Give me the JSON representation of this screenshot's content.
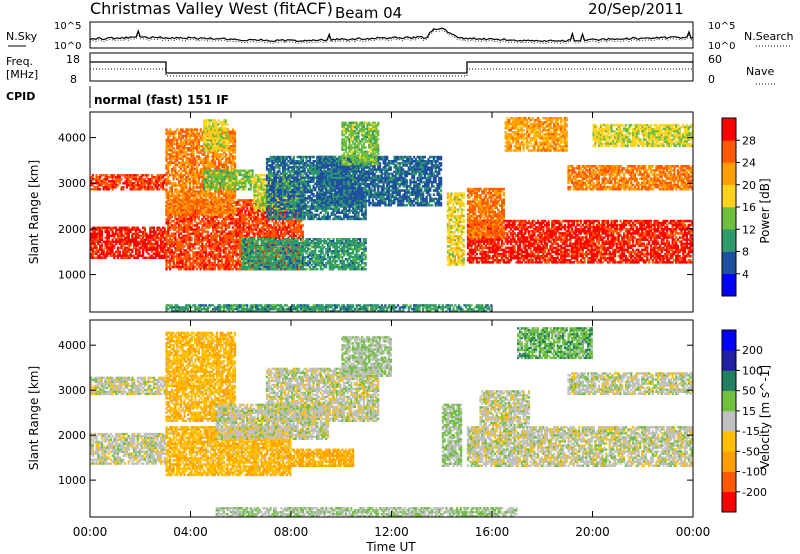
{
  "header": {
    "title": "Christmas Valley West (fitACF)",
    "beam": "Beam 04",
    "date": "20/Sep/2011"
  },
  "noise_panel": {
    "left_label": "N.Sky",
    "right_label": "N.Search",
    "y_tick_top": "10^5",
    "y_tick_bottom": "10^0"
  },
  "freq_panel": {
    "left_label_1": "Freq.",
    "left_label_2": "[MHz]",
    "right_label": "Nave",
    "left_ticks": [
      "18",
      "8"
    ],
    "right_ticks": [
      "60",
      "0"
    ]
  },
  "cpid": {
    "label": "CPID",
    "text": "normal (fast) 151 IF"
  },
  "colors": {
    "power": [
      "#0000ff",
      "#1f4fa0",
      "#2f9a6a",
      "#6cbe3c",
      "#ffd21e",
      "#ff9f00",
      "#ff5a00",
      "#ff0000"
    ],
    "velocity": [
      "#ff0000",
      "#ff5a00",
      "#ff9f00",
      "#ffc000",
      "#c0c0c0",
      "#70c040",
      "#208060",
      "#2020a0",
      "#0000ff"
    ]
  },
  "chart_data": [
    {
      "type": "heatmap",
      "name_of_quantity": "power",
      "ylabel": "Slant Range [km]",
      "ylim": [
        180,
        4560
      ],
      "yticks": [
        "1000",
        "2000",
        "3000",
        "4000"
      ],
      "colorbar_label": "Power [dB]",
      "colorbar_ticks": [
        "4",
        "8",
        "12",
        "16",
        "20",
        "24",
        "28"
      ],
      "colorbar_range": [
        0,
        32
      ],
      "bands": [
        {
          "t0": 0.0,
          "t1": 3.0,
          "r0": 1350,
          "r1": 2050,
          "v": 29
        },
        {
          "t0": 0.0,
          "t1": 3.0,
          "r0": 2850,
          "r1": 3200,
          "v": 27
        },
        {
          "t0": 3.0,
          "t1": 8.5,
          "r0": 1100,
          "r1": 2650,
          "v": 27
        },
        {
          "t0": 3.0,
          "t1": 5.8,
          "r0": 2300,
          "r1": 4200,
          "v": 24
        },
        {
          "t0": 4.5,
          "t1": 6.5,
          "r0": 2850,
          "r1": 3300,
          "v": 14
        },
        {
          "t0": 6.5,
          "t1": 8.5,
          "r0": 2400,
          "r1": 3200,
          "v": 16
        },
        {
          "t0": 7.0,
          "t1": 11.0,
          "r0": 2200,
          "r1": 3600,
          "v": 8
        },
        {
          "t0": 9.0,
          "t1": 14.0,
          "r0": 2500,
          "r1": 3600,
          "v": 7
        },
        {
          "t0": 6.0,
          "t1": 11.0,
          "r0": 1100,
          "r1": 1800,
          "v": 10
        },
        {
          "t0": 10.0,
          "t1": 11.5,
          "r0": 3400,
          "r1": 4350,
          "v": 14
        },
        {
          "t0": 4.5,
          "t1": 5.5,
          "r0": 3700,
          "r1": 4400,
          "v": 17
        },
        {
          "t0": 14.2,
          "t1": 14.9,
          "r0": 1200,
          "r1": 2800,
          "v": 18
        },
        {
          "t0": 15.0,
          "t1": 24.0,
          "r0": 1250,
          "r1": 2200,
          "v": 29
        },
        {
          "t0": 15.0,
          "t1": 16.5,
          "r0": 1800,
          "r1": 2900,
          "v": 25
        },
        {
          "t0": 16.5,
          "t1": 19.0,
          "r0": 3700,
          "r1": 4450,
          "v": 22
        },
        {
          "t0": 19.0,
          "t1": 24.0,
          "r0": 2850,
          "r1": 3400,
          "v": 24
        },
        {
          "t0": 20.0,
          "t1": 24.0,
          "r0": 3800,
          "r1": 4300,
          "v": 17
        },
        {
          "t0": 3.0,
          "t1": 16.0,
          "r0": 180,
          "r1": 350,
          "v": 10
        }
      ]
    },
    {
      "type": "heatmap",
      "name_of_quantity": "velocity",
      "ylabel": "Slant Range [km]",
      "xlabel": "Time UT",
      "ylim": [
        180,
        4560
      ],
      "yticks": [
        "1000",
        "2000",
        "3000",
        "4000"
      ],
      "xticks": [
        "00:00",
        "04:00",
        "08:00",
        "12:00",
        "16:00",
        "20:00",
        "00:00"
      ],
      "xlim": [
        0,
        24
      ],
      "colorbar_label": "Velocity [m s^-1]",
      "colorbar_ticks": [
        "200",
        "100",
        "50",
        "15",
        "-15",
        "-50",
        "-100",
        "-200"
      ],
      "colorbar_range": [
        -250,
        250
      ],
      "bands": [
        {
          "t0": 0.0,
          "t1": 3.0,
          "r0": 1350,
          "r1": 2050,
          "v": 0
        },
        {
          "t0": 0.0,
          "t1": 3.0,
          "r0": 2900,
          "r1": 3300,
          "v": 0
        },
        {
          "t0": 3.0,
          "t1": 8.0,
          "r0": 1100,
          "r1": 2200,
          "v": -70
        },
        {
          "t0": 3.0,
          "t1": 5.8,
          "r0": 2300,
          "r1": 4300,
          "v": -70
        },
        {
          "t0": 5.0,
          "t1": 9.5,
          "r0": 1900,
          "r1": 2700,
          "v": 0
        },
        {
          "t0": 7.0,
          "t1": 11.5,
          "r0": 2300,
          "r1": 3500,
          "v": 0
        },
        {
          "t0": 8.0,
          "t1": 10.5,
          "r0": 1300,
          "r1": 1700,
          "v": -90
        },
        {
          "t0": 10.0,
          "t1": 12.0,
          "r0": 3300,
          "r1": 4200,
          "v": 20
        },
        {
          "t0": 14.0,
          "t1": 14.8,
          "r0": 1300,
          "r1": 2700,
          "v": 30
        },
        {
          "t0": 15.0,
          "t1": 24.0,
          "r0": 1300,
          "r1": 2200,
          "v": 0
        },
        {
          "t0": 15.5,
          "t1": 17.5,
          "r0": 2200,
          "r1": 3000,
          "v": 0
        },
        {
          "t0": 19.0,
          "t1": 24.0,
          "r0": 2900,
          "r1": 3400,
          "v": 0
        },
        {
          "t0": 17.0,
          "t1": 20.0,
          "r0": 3700,
          "r1": 4400,
          "v": 60
        },
        {
          "t0": 5.0,
          "t1": 17.0,
          "r0": 180,
          "r1": 400,
          "v": 20
        }
      ]
    }
  ]
}
